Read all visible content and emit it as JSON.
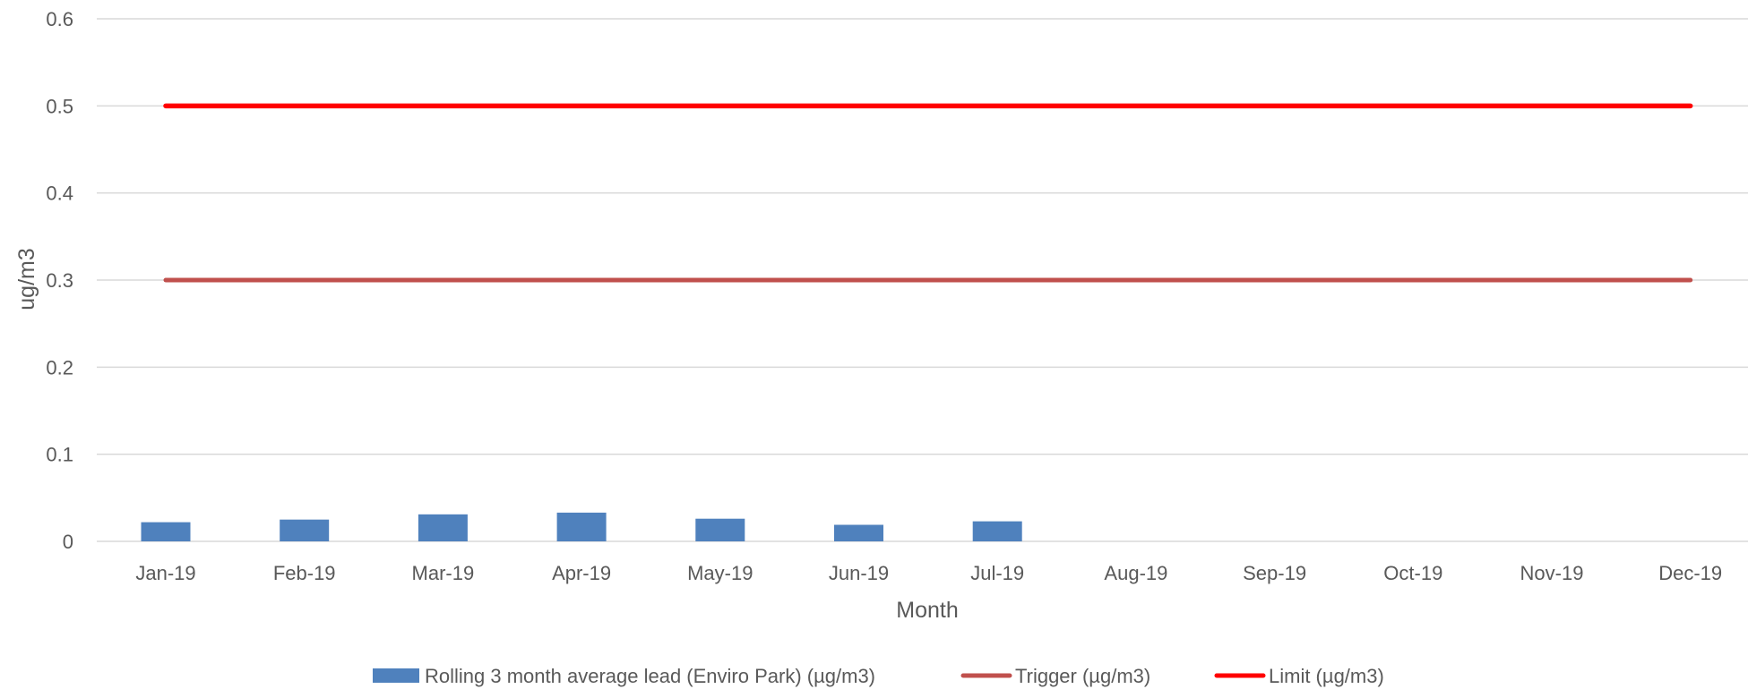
{
  "chart_data": {
    "type": "bar",
    "categories": [
      "Jan-19",
      "Feb-19",
      "Mar-19",
      "Apr-19",
      "May-19",
      "Jun-19",
      "Jul-19",
      "Aug-19",
      "Sep-19",
      "Oct-19",
      "Nov-19",
      "Dec-19"
    ],
    "xlabel": "Month",
    "ylabel": "ug/m3",
    "ylim": [
      0,
      0.6
    ],
    "yticks": [
      "0",
      "0.1",
      "0.2",
      "0.3",
      "0.4",
      "0.5",
      "0.6"
    ],
    "grid": true,
    "legend_position": "bottom",
    "series": [
      {
        "name": "Rolling 3 month average lead (Enviro Park) (µg/m3)",
        "type": "bar",
        "color": "#4f81bd",
        "values": [
          0.022,
          0.025,
          0.031,
          0.033,
          0.026,
          0.019,
          0.023,
          null,
          null,
          null,
          null,
          null
        ]
      },
      {
        "name": "Trigger (µg/m3)",
        "type": "line",
        "color": "#c0504d",
        "values": [
          0.3,
          0.3,
          0.3,
          0.3,
          0.3,
          0.3,
          0.3,
          0.3,
          0.3,
          0.3,
          0.3,
          0.3
        ]
      },
      {
        "name": "Limit (µg/m3)",
        "type": "line",
        "color": "#ff0000",
        "values": [
          0.5,
          0.5,
          0.5,
          0.5,
          0.5,
          0.5,
          0.5,
          0.5,
          0.5,
          0.5,
          0.5,
          0.5
        ]
      }
    ]
  }
}
